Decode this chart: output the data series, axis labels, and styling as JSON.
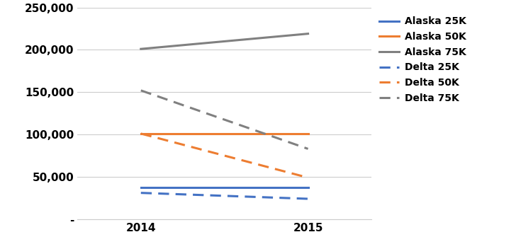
{
  "years": [
    2014,
    2015
  ],
  "series": [
    {
      "label": "Alaska 25K",
      "values": [
        37500,
        37500
      ],
      "color": "#4472C4",
      "linestyle": "solid",
      "linewidth": 2.2
    },
    {
      "label": "Alaska 50K",
      "values": [
        101000,
        101000
      ],
      "color": "#ED7D31",
      "linestyle": "solid",
      "linewidth": 2.2
    },
    {
      "label": "Alaska 75K",
      "values": [
        201000,
        219000
      ],
      "color": "#808080",
      "linestyle": "solid",
      "linewidth": 2.2
    },
    {
      "label": "Delta 25K",
      "values": [
        31000,
        24000
      ],
      "color": "#4472C4",
      "linestyle": "dashed",
      "linewidth": 2.2
    },
    {
      "label": "Delta 50K",
      "values": [
        101000,
        49000
      ],
      "color": "#ED7D31",
      "linestyle": "dashed",
      "linewidth": 2.2
    },
    {
      "label": "Delta 75K",
      "values": [
        152000,
        83000
      ],
      "color": "#808080",
      "linestyle": "dashed",
      "linewidth": 2.2
    }
  ],
  "ylim": [
    0,
    250000
  ],
  "yticks": [
    0,
    50000,
    100000,
    150000,
    200000,
    250000
  ],
  "ytick_labels": [
    "-",
    "50,000",
    "100,000",
    "150,000",
    "200,000",
    "250,000"
  ],
  "xticks": [
    2014,
    2015
  ],
  "grid_color": "#CCCCCC",
  "background_color": "#FFFFFF",
  "legend_fontsize": 10,
  "tick_fontsize": 11,
  "figsize": [
    7.28,
    3.52
  ],
  "dpi": 100
}
